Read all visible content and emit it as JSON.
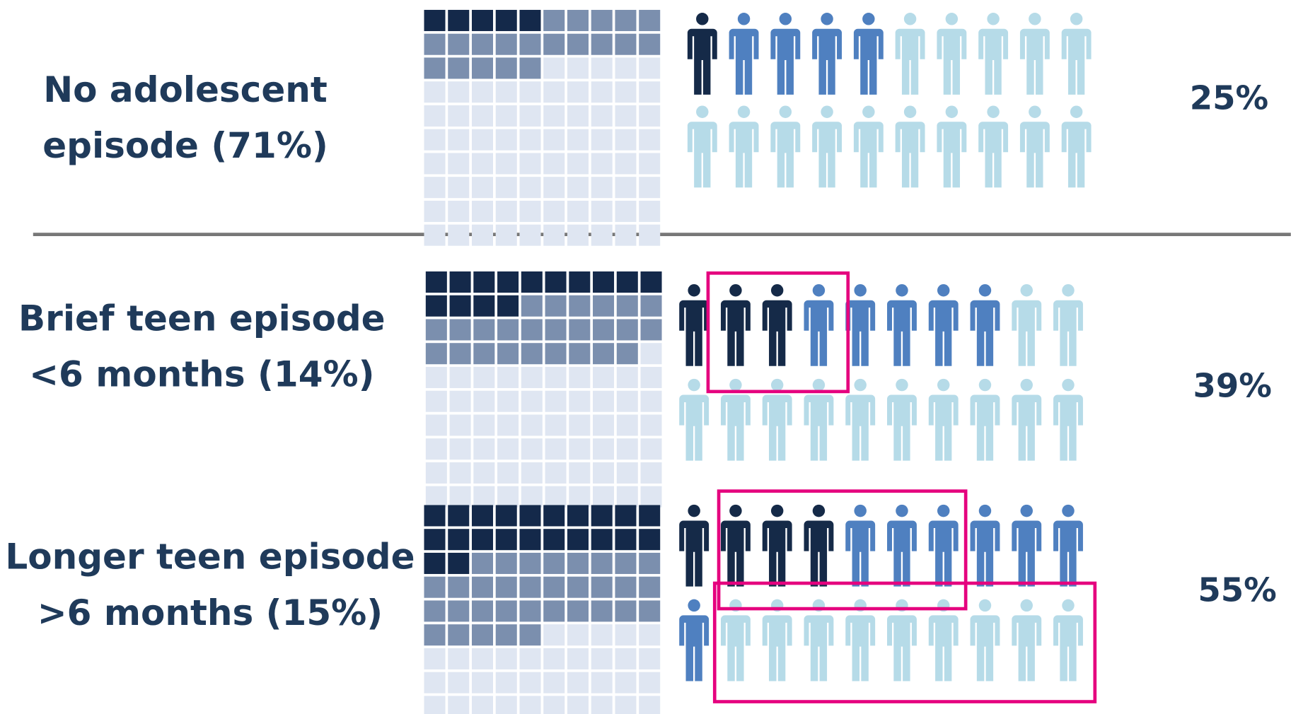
{
  "chart_data": {
    "type": "waffle",
    "categories": [
      [
        "No adolescent",
        "episode (71%)"
      ],
      [
        "Brief teen episode",
        "<6 months (14%)"
      ],
      [
        "Longer teen episode",
        ">6 months (15%)"
      ]
    ],
    "values": [
      25,
      39,
      55
    ],
    "value_labels": [
      "25%",
      "39%",
      "55%"
    ],
    "grid_dark": [
      5,
      14,
      22
    ],
    "grid_medium": [
      20,
      25,
      33
    ],
    "people_dark": [
      1,
      3,
      4
    ],
    "people_medium": [
      4,
      5,
      7
    ],
    "grid_colors": {
      "dark": "#14294a",
      "medium": "#7b8fae",
      "light": "#dfe6f2"
    },
    "people_colors": {
      "dark": "#152a48",
      "medium": "#4f80c0",
      "light": "#b6dbe8"
    }
  }
}
